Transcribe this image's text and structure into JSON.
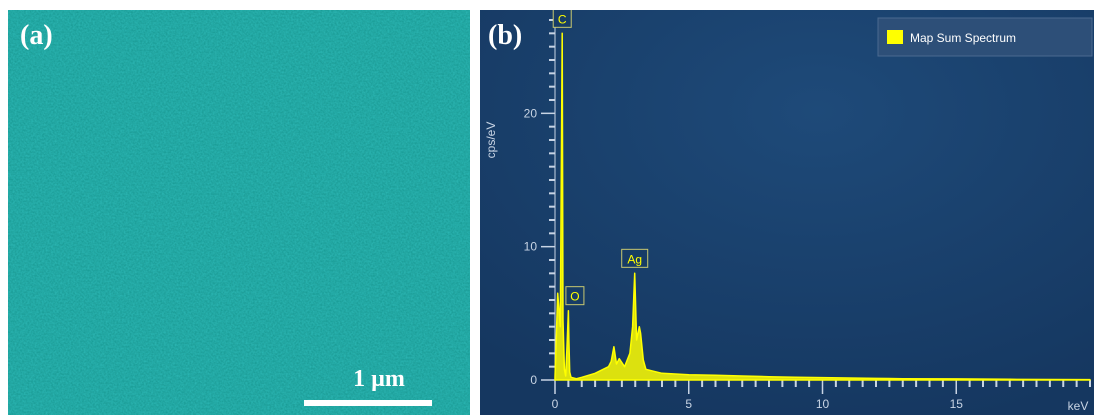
{
  "panel_a": {
    "label": "(a)",
    "scale_bar_label": "1 µm",
    "map_color": "#1ea8a2"
  },
  "panel_b": {
    "label": "(b)"
  },
  "chart_data": {
    "type": "line",
    "title": "",
    "xlabel": "keV",
    "ylabel": "cps/eV",
    "xlim": [
      0,
      20
    ],
    "ylim": [
      0,
      27
    ],
    "x_ticks": [
      0,
      5,
      10,
      15
    ],
    "y_ticks": [
      0,
      10,
      20
    ],
    "grid": false,
    "legend_position": "top-right",
    "background": "#173c66",
    "series": [
      {
        "name": "Map Sum Spectrum",
        "color": "#ffff00",
        "x": [
          0,
          0.1,
          0.2,
          0.27,
          0.3,
          0.35,
          0.4,
          0.45,
          0.5,
          0.52,
          0.55,
          0.6,
          0.8,
          1.0,
          1.5,
          2.0,
          2.1,
          2.2,
          2.3,
          2.4,
          2.6,
          2.8,
          2.9,
          2.98,
          3.05,
          3.15,
          3.2,
          3.3,
          3.4,
          3.6,
          4.0,
          5.0,
          6.0,
          7.0,
          8.0,
          9.0,
          10.0,
          11.0,
          12.0,
          13.0,
          15.0,
          17.0,
          20.0
        ],
        "y": [
          0.2,
          6.5,
          4.0,
          26.0,
          4.5,
          0.8,
          0.3,
          2.5,
          5.2,
          3.0,
          0.6,
          0.2,
          0.1,
          0.2,
          0.5,
          1.0,
          1.4,
          2.5,
          1.2,
          1.6,
          1.0,
          2.0,
          4.0,
          8.0,
          3.0,
          4.0,
          3.5,
          1.5,
          0.8,
          0.7,
          0.5,
          0.4,
          0.35,
          0.3,
          0.25,
          0.2,
          0.18,
          0.15,
          0.12,
          0.1,
          0.08,
          0.05,
          0.03
        ]
      }
    ],
    "peak_labels": [
      {
        "text": "C",
        "x": 0.27,
        "y": 26.0
      },
      {
        "text": "O",
        "x": 0.52,
        "y": 5.2
      },
      {
        "text": "Ag",
        "x": 2.98,
        "y": 8.0
      }
    ]
  }
}
